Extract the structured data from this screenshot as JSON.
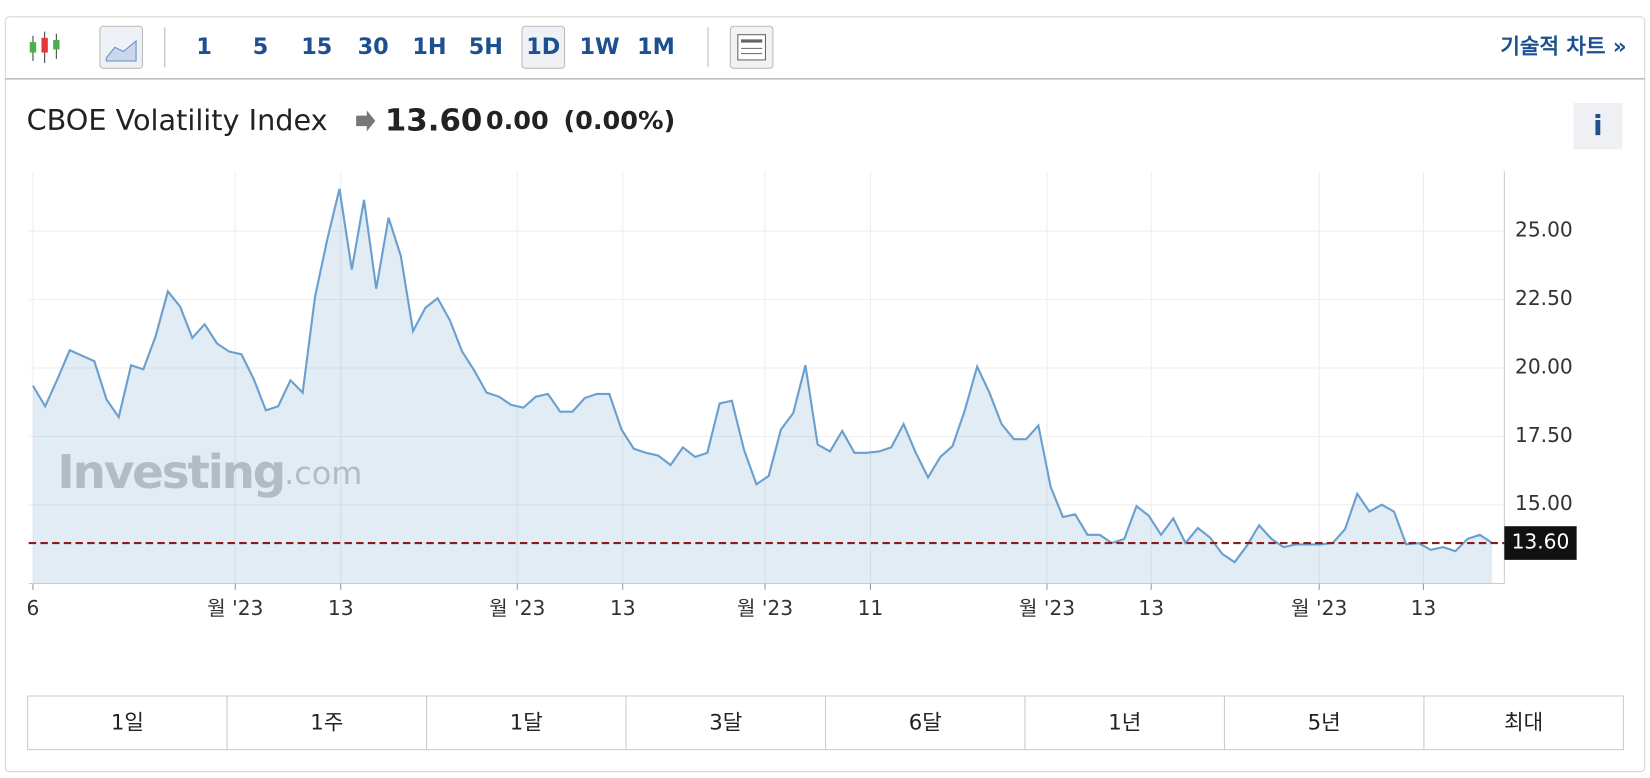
{
  "toolbar": {
    "intervals": [
      "1",
      "5",
      "15",
      "30",
      "1H",
      "5H",
      "1D",
      "1W",
      "1M"
    ],
    "technical": "기술적 차트 »"
  },
  "header": {
    "name": "CBOE Volatility Index",
    "price": "13.60",
    "change": "0.00",
    "change_pct": "(0.00%)",
    "info": "i"
  },
  "watermark": {
    "brand": "Investing",
    "suffix": ".com"
  },
  "ranges": [
    "1일",
    "1주",
    "1달",
    "3달",
    "6달",
    "1년",
    "5년",
    "최대"
  ],
  "chart_data": {
    "type": "area",
    "color": "#6a9fcf",
    "values": [
      19.35,
      18.6,
      19.6,
      20.65,
      20.45,
      20.25,
      18.85,
      18.2,
      20.1,
      19.95,
      21.15,
      22.8,
      22.25,
      21.1,
      21.6,
      20.9,
      20.6,
      20.5,
      19.6,
      18.45,
      18.6,
      19.55,
      19.1,
      22.6,
      24.7,
      26.55,
      23.6,
      26.15,
      22.9,
      25.5,
      24.1,
      21.35,
      22.2,
      22.55,
      21.75,
      20.6,
      19.9,
      19.1,
      18.95,
      18.65,
      18.55,
      18.95,
      19.05,
      18.4,
      18.4,
      18.9,
      19.05,
      19.05,
      17.75,
      17.05,
      16.9,
      16.8,
      16.45,
      17.1,
      16.75,
      16.9,
      18.7,
      18.8,
      17.0,
      15.75,
      16.05,
      17.75,
      18.35,
      20.1,
      17.2,
      16.95,
      17.7,
      16.9,
      16.9,
      16.95,
      17.1,
      17.95,
      16.9,
      16.0,
      16.75,
      17.15,
      18.45,
      20.05,
      19.1,
      17.95,
      17.4,
      17.4,
      17.9,
      15.65,
      14.55,
      14.65,
      13.9,
      13.9,
      13.6,
      13.75,
      14.95,
      14.6,
      13.9,
      14.5,
      13.6,
      14.15,
      13.8,
      13.2,
      12.9,
      13.5,
      14.25,
      13.75,
      13.45,
      13.55,
      13.55,
      13.55,
      13.6,
      14.1,
      15.4,
      14.75,
      15.0,
      14.75,
      13.55,
      13.6,
      13.35,
      13.45,
      13.3,
      13.75,
      13.9,
      13.6
    ],
    "xlim": [
      0,
      120.0
    ],
    "xticks": [
      {
        "value": 0,
        "label": "6"
      },
      {
        "value": 16.5,
        "label": "월 '23"
      },
      {
        "value": 25.1,
        "label": "13"
      },
      {
        "value": 39.5,
        "label": "월 '23"
      },
      {
        "value": 48.1,
        "label": "13"
      },
      {
        "value": 59.7,
        "label": "월 '23"
      },
      {
        "value": 68.3,
        "label": "11"
      },
      {
        "value": 82.7,
        "label": "월 '23"
      },
      {
        "value": 91.2,
        "label": "13"
      },
      {
        "value": 104.9,
        "label": "월 '23"
      },
      {
        "value": 113.4,
        "label": "13"
      }
    ],
    "ylim": [
      12.12,
      27.19
    ],
    "yticks": [
      {
        "value": 15,
        "label": "15.00"
      },
      {
        "value": 17.5,
        "label": "17.50"
      },
      {
        "value": 20,
        "label": "20.00"
      },
      {
        "value": 22.5,
        "label": "22.50"
      },
      {
        "value": 25,
        "label": "25.00"
      }
    ],
    "last": {
      "value": 13.6,
      "label": "13.60",
      "color": "#8b1a1a"
    },
    "grid": true
  }
}
